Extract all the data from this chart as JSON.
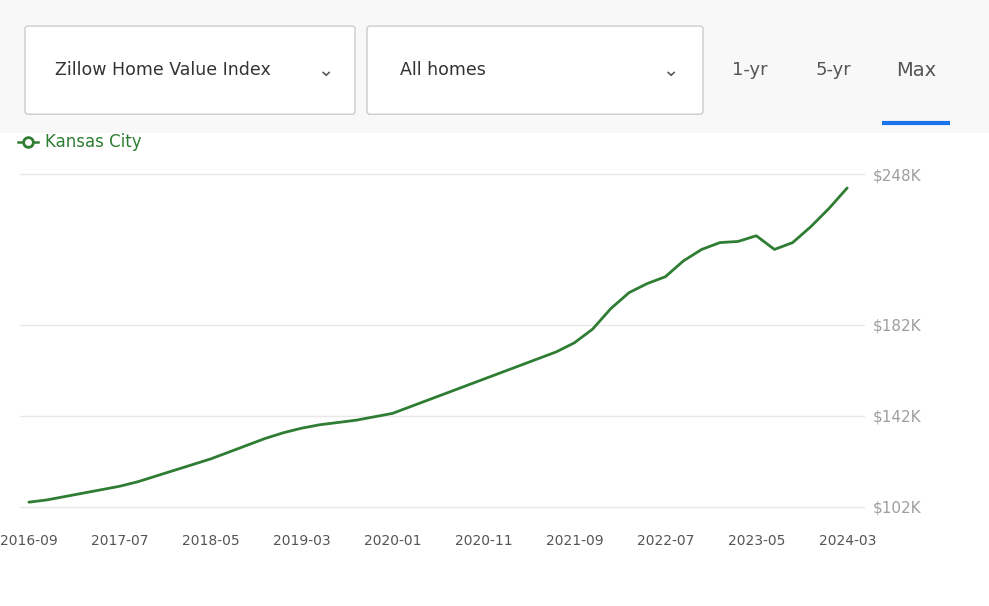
{
  "legend_label": "Kansas City",
  "line_color": "#2e7d32",
  "background_color": "#ffffff",
  "grid_color": "#e8e8e8",
  "ylabel_color": "#9e9e9e",
  "xlabel_color": "#555555",
  "ytick_labels": [
    "$102K",
    "$142K",
    "$182K",
    "$248K"
  ],
  "ytick_values": [
    102000,
    142000,
    182000,
    248000
  ],
  "ylim": [
    93000,
    262000
  ],
  "xtick_labels": [
    "2016-09",
    "2017-07",
    "2018-05",
    "2019-03",
    "2020-01",
    "2020-11",
    "2021-09",
    "2022-07",
    "2023-05",
    "2024-03"
  ],
  "x_values": [
    0,
    10,
    20,
    30,
    40,
    50,
    60,
    70,
    80,
    90
  ],
  "data_x": [
    0,
    2,
    4,
    6,
    8,
    10,
    12,
    14,
    16,
    18,
    20,
    22,
    24,
    26,
    28,
    30,
    32,
    34,
    36,
    38,
    40,
    42,
    44,
    46,
    48,
    50,
    52,
    54,
    56,
    58,
    60,
    62,
    64,
    66,
    68,
    70,
    72,
    74,
    76,
    78,
    80,
    82,
    84,
    86,
    88,
    90
  ],
  "data_y": [
    104000,
    105000,
    106500,
    108000,
    109500,
    111000,
    113000,
    115500,
    118000,
    120500,
    123000,
    126000,
    129000,
    132000,
    134500,
    136500,
    138000,
    139000,
    140000,
    141500,
    143000,
    146000,
    149000,
    152000,
    155000,
    158000,
    161000,
    164000,
    167000,
    170000,
    174000,
    180000,
    189000,
    196000,
    200000,
    203000,
    210000,
    215000,
    218000,
    218500,
    221000,
    215000,
    218000,
    225000,
    233000,
    242000
  ],
  "dropdown1_text": "Zillow Home Value Index",
  "dropdown2_text": "All homes",
  "dropdown_bg": "#f5f5f5",
  "dropdown_border": "#cccccc",
  "btn_1yr": "1-yr",
  "btn_5yr": "5-yr",
  "btn_max": "Max",
  "active_btn_color": "#1a73e8",
  "inactive_btn_color": "#555555",
  "max_btn_fontsize": 14,
  "btn_fontsize": 13
}
